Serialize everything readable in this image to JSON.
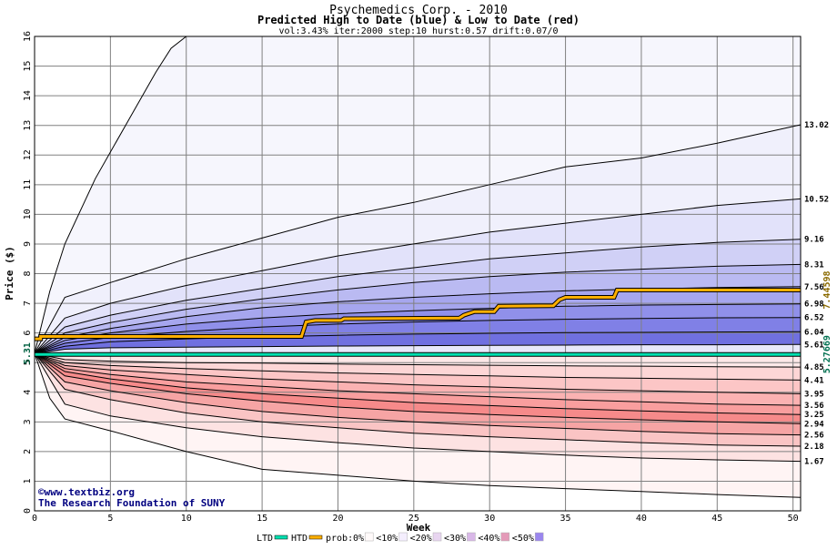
{
  "chart_data": {
    "type": "area",
    "title": "Psychemedics Corp. - 2010",
    "subtitle": "Predicted High to Date (blue) &  Low to Date (red)",
    "params": "vol:3.43% iter:2000 step:10 hurst:0.57 drift:0.07/0",
    "xlabel": "Week",
    "ylabel": "Price ($)",
    "xlim": [
      0,
      50.5
    ],
    "ylim": [
      0,
      16
    ],
    "x_ticks": [
      0,
      5,
      10,
      15,
      20,
      25,
      30,
      35,
      40,
      45,
      50
    ],
    "y_ticks": [
      0,
      1,
      2,
      3,
      4,
      5,
      6,
      7,
      8,
      9,
      10,
      11,
      12,
      13,
      14,
      15,
      16
    ],
    "grid": true,
    "start_price": "5.31",
    "high_percentiles": {
      "x": [
        0,
        2,
        5,
        10,
        15,
        20,
        25,
        30,
        35,
        40,
        45,
        50.5
      ],
      "curves": [
        {
          "end_label": "13.02",
          "values": [
            5.31,
            7.2,
            7.7,
            8.5,
            9.2,
            9.9,
            10.4,
            11.0,
            11.6,
            11.9,
            12.4,
            13.02
          ]
        },
        {
          "end_label": "10.52",
          "values": [
            5.31,
            6.5,
            7.0,
            7.6,
            8.1,
            8.6,
            9.0,
            9.4,
            9.7,
            10.0,
            10.3,
            10.52
          ]
        },
        {
          "end_label": "9.16",
          "values": [
            5.31,
            6.2,
            6.6,
            7.1,
            7.5,
            7.9,
            8.2,
            8.5,
            8.7,
            8.9,
            9.05,
            9.16
          ]
        },
        {
          "end_label": "8.31",
          "values": [
            5.31,
            6.0,
            6.35,
            6.8,
            7.15,
            7.45,
            7.7,
            7.9,
            8.05,
            8.15,
            8.25,
            8.31
          ]
        },
        {
          "end_label": "7.56",
          "values": [
            5.31,
            5.85,
            6.15,
            6.55,
            6.85,
            7.05,
            7.2,
            7.32,
            7.42,
            7.48,
            7.53,
            7.56
          ]
        },
        {
          "end_label": "6.98",
          "values": [
            5.31,
            5.75,
            6.0,
            6.3,
            6.5,
            6.65,
            6.75,
            6.83,
            6.9,
            6.94,
            6.96,
            6.98
          ]
        },
        {
          "end_label": "6.52",
          "values": [
            5.31,
            5.65,
            5.85,
            6.05,
            6.2,
            6.3,
            6.37,
            6.42,
            6.46,
            6.49,
            6.51,
            6.52
          ]
        },
        {
          "end_label": "6.04",
          "values": [
            5.31,
            5.55,
            5.7,
            5.8,
            5.87,
            5.92,
            5.96,
            5.99,
            6.01,
            6.02,
            6.03,
            6.04
          ]
        },
        {
          "end_label": "5.61",
          "values": [
            5.31,
            5.45,
            5.5,
            5.52,
            5.54,
            5.56,
            5.57,
            5.58,
            5.59,
            5.6,
            5.6,
            5.61
          ]
        }
      ]
    },
    "low_percentiles": {
      "x": [
        0,
        2,
        5,
        10,
        15,
        20,
        25,
        30,
        35,
        40,
        45,
        50.5
      ],
      "curves": [
        {
          "end_label": "4.85",
          "values": [
            5.31,
            5.1,
            5.05,
            5.0,
            4.98,
            4.95,
            4.93,
            4.91,
            4.89,
            4.88,
            4.86,
            4.85
          ]
        },
        {
          "end_label": "4.41",
          "values": [
            5.31,
            5.0,
            4.9,
            4.8,
            4.72,
            4.65,
            4.6,
            4.55,
            4.5,
            4.47,
            4.44,
            4.41
          ]
        },
        {
          "end_label": "3.95",
          "values": [
            5.31,
            4.9,
            4.75,
            4.6,
            4.45,
            4.35,
            4.25,
            4.18,
            4.1,
            4.05,
            4.0,
            3.95
          ]
        },
        {
          "end_label": "3.56",
          "values": [
            5.31,
            4.8,
            4.6,
            4.35,
            4.2,
            4.05,
            3.95,
            3.85,
            3.75,
            3.68,
            3.6,
            3.56
          ]
        },
        {
          "end_label": "3.25",
          "values": [
            5.31,
            4.7,
            4.45,
            4.15,
            3.95,
            3.8,
            3.65,
            3.55,
            3.45,
            3.37,
            3.3,
            3.25
          ]
        },
        {
          "end_label": "2.94",
          "values": [
            5.31,
            4.55,
            4.3,
            3.95,
            3.7,
            3.5,
            3.35,
            3.25,
            3.15,
            3.07,
            3.0,
            2.94
          ]
        },
        {
          "end_label": "2.56",
          "values": [
            5.31,
            4.35,
            4.05,
            3.65,
            3.35,
            3.15,
            3.0,
            2.88,
            2.78,
            2.68,
            2.6,
            2.56
          ]
        },
        {
          "end_label": "2.18",
          "values": [
            5.31,
            4.1,
            3.75,
            3.3,
            3.0,
            2.8,
            2.62,
            2.5,
            2.4,
            2.3,
            2.22,
            2.18
          ]
        },
        {
          "end_label": "1.67",
          "values": [
            5.31,
            3.6,
            3.2,
            2.8,
            2.5,
            2.3,
            2.12,
            2.0,
            1.88,
            1.78,
            1.72,
            1.67
          ]
        }
      ]
    },
    "outer_high": {
      "x": [
        0,
        1,
        2,
        4,
        6,
        8,
        9,
        10,
        50.5
      ],
      "values": [
        5.31,
        7.4,
        9.0,
        11.2,
        13.0,
        14.8,
        15.6,
        16.0,
        16.0
      ]
    },
    "outer_low": {
      "x": [
        0,
        1,
        2,
        5,
        10,
        15,
        20,
        25,
        30,
        35,
        40,
        45,
        50.5
      ],
      "values": [
        5.31,
        3.8,
        3.1,
        2.7,
        2.0,
        1.4,
        1.2,
        1.0,
        0.85,
        0.75,
        0.65,
        0.55,
        0.45
      ]
    },
    "htd_series": {
      "name": "HTD",
      "end_label": "7.44598",
      "x": [
        0,
        0.4,
        0.4,
        17.6,
        17.9,
        18.5,
        20.2,
        20.4,
        28.0,
        28.3,
        29.0,
        30.3,
        30.6,
        34.2,
        34.6,
        35.0,
        38.2,
        38.4,
        50.5
      ],
      "values": [
        5.8,
        5.8,
        5.88,
        5.88,
        6.37,
        6.42,
        6.42,
        6.48,
        6.5,
        6.6,
        6.72,
        6.72,
        6.9,
        6.92,
        7.12,
        7.2,
        7.2,
        7.44598,
        7.44598
      ]
    },
    "ltd_series": {
      "name": "LTD",
      "end_label": "5.27669",
      "x": [
        0,
        50.5
      ],
      "values": [
        5.27669,
        5.27669
      ]
    },
    "credits": [
      "www.textbiz.org",
      "The Research Foundation of SUNY"
    ],
    "legend": {
      "ltd": "LTD",
      "htd": "HTD",
      "prob_label": "prob:",
      "items": [
        {
          "label": "0%",
          "color": "#fffafa"
        },
        {
          "label": "<10%",
          "color": "#f4eefd"
        },
        {
          "label": "<20%",
          "color": "#e8d5f0"
        },
        {
          "label": "<30%",
          "color": "#d9b8e8"
        },
        {
          "label": "<40%",
          "color": "#e49ab8"
        },
        {
          "label": "<50%",
          "color": "#9a86ee"
        }
      ]
    },
    "colors": {
      "htd": "#ffb000",
      "ltd": "#00e0b0",
      "blue_bands": [
        "#f0f0fc",
        "#e2e2fa",
        "#d0d0f6",
        "#babaf2",
        "#a6a6ee",
        "#9090ea",
        "#8080e6",
        "#7070e0",
        "#e8e8fa"
      ],
      "red_bands": [
        "#fde8e8",
        "#fdd6d6",
        "#fcc6c6",
        "#fbb2b2",
        "#f99e9e",
        "#f68a8a",
        "#f6a4a4",
        "#fac4c4",
        "#fde2e2"
      ],
      "outer_red": "#fff4f4",
      "outer_blue": "#f6f6fd",
      "text_navy": "#000080",
      "start_label_green": "#006040",
      "htd_label_color": "#8a6a00",
      "ltd_label_color": "#007050"
    }
  }
}
